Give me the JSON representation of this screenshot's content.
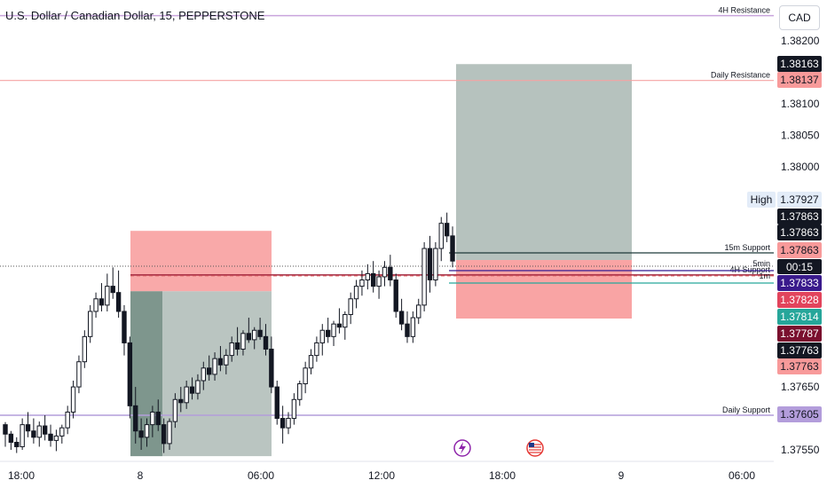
{
  "header": {
    "title": "U.S. Dollar / Canadian Dollar, 15, PEPPERSTONE",
    "currency": "CAD"
  },
  "colors": {
    "background": "#ffffff",
    "up_candle": "#ffffff",
    "down_candle": "#131722",
    "target_zone": "#b2bfba",
    "stop_zone": "#f89a9a",
    "resistance_4h": "#c9a4dd",
    "daily_resistance": "#f4a3a3",
    "daily_support": "#b39ddb",
    "support_4h": "#a3273f",
    "support_15m": "#1f3a3a"
  },
  "chart_data": {
    "type": "candlestick",
    "instrument": "U.S. Dollar / Canadian Dollar",
    "timeframe": "15",
    "ylim": [
      1.3754,
      1.3824
    ],
    "price_ticks": [
      1.382,
      1.381,
      1.3805,
      1.38,
      1.3765,
      1.3755
    ],
    "x_ticks": [
      "18:00",
      "8",
      "06:00",
      "12:00",
      "18:00",
      "9",
      "06:00"
    ],
    "levels": [
      {
        "name": "4H Resistance",
        "price": 1.3824
      },
      {
        "name": "Daily Resistance",
        "price": 1.38137
      },
      {
        "name": "15m Support",
        "price": 1.37863
      },
      {
        "name": "4H Support",
        "price": 1.37828
      },
      {
        "name": "Daily Support",
        "price": 1.37605
      }
    ],
    "small_labels": [
      "5min",
      "1m"
    ],
    "high_label": "High",
    "countdown": "00:15",
    "price_labels": [
      {
        "value": "1.38163",
        "style": "dark"
      },
      {
        "value": "1.38137",
        "style": "pink"
      },
      {
        "value": "1.37927",
        "style": "light"
      },
      {
        "value": "1.37863",
        "style": "dark"
      },
      {
        "value": "1.37863",
        "style": "dark"
      },
      {
        "value": "1.37863",
        "style": "pink"
      },
      {
        "value": "1.37833",
        "style": "purple"
      },
      {
        "value": "1.37828",
        "style": "red"
      },
      {
        "value": "1.37814",
        "style": "teal"
      },
      {
        "value": "1.37787",
        "style": "maroon"
      },
      {
        "value": "1.37763",
        "style": "dark"
      },
      {
        "value": "1.37763",
        "style": "pink"
      },
      {
        "value": "1.37605",
        "style": "lavender"
      }
    ],
    "positions": [
      {
        "side": "short",
        "entry": 1.37833,
        "stop": 1.37898,
        "target": 1.3754
      },
      {
        "side": "long",
        "entry": 1.37863,
        "stop": 1.37787,
        "target": 1.38163
      }
    ],
    "candles": [
      [
        1.3759,
        1.37594,
        1.37555,
        1.37575
      ],
      [
        1.37575,
        1.3758,
        1.3755,
        1.37562
      ],
      [
        1.37562,
        1.3757,
        1.37545,
        1.37555
      ],
      [
        1.37555,
        1.376,
        1.3755,
        1.3759
      ],
      [
        1.3759,
        1.3761,
        1.3757,
        1.3758
      ],
      [
        1.3758,
        1.376,
        1.3756,
        1.3757
      ],
      [
        1.3757,
        1.37595,
        1.37555,
        1.37588
      ],
      [
        1.37588,
        1.37605,
        1.37565,
        1.37575
      ],
      [
        1.37575,
        1.3759,
        1.37555,
        1.37565
      ],
      [
        1.37565,
        1.37582,
        1.37548,
        1.37572
      ],
      [
        1.37572,
        1.3759,
        1.3756,
        1.37585
      ],
      [
        1.37585,
        1.3762,
        1.37575,
        1.3761
      ],
      [
        1.3761,
        1.3766,
        1.376,
        1.3765
      ],
      [
        1.3765,
        1.377,
        1.3764,
        1.3769
      ],
      [
        1.3769,
        1.3774,
        1.3768,
        1.3773
      ],
      [
        1.3773,
        1.3778,
        1.3772,
        1.3777
      ],
      [
        1.3777,
        1.378,
        1.3776,
        1.3779
      ],
      [
        1.3779,
        1.37815,
        1.3777,
        1.3778
      ],
      [
        1.3778,
        1.3783,
        1.3777,
        1.3781
      ],
      [
        1.3781,
        1.3784,
        1.3779,
        1.378
      ],
      [
        1.378,
        1.37835,
        1.3776,
        1.3777
      ],
      [
        1.3777,
        1.3778,
        1.377,
        1.3772
      ],
      [
        1.3772,
        1.3773,
        1.376,
        1.3762
      ],
      [
        1.3762,
        1.3765,
        1.3756,
        1.3758
      ],
      [
        1.3758,
        1.376,
        1.3755,
        1.3757
      ],
      [
        1.3757,
        1.376,
        1.37555,
        1.3759
      ],
      [
        1.3759,
        1.3762,
        1.3757,
        1.3761
      ],
      [
        1.3761,
        1.3763,
        1.3758,
        1.3759
      ],
      [
        1.3759,
        1.376,
        1.37545,
        1.3756
      ],
      [
        1.3756,
        1.376,
        1.3755,
        1.37595
      ],
      [
        1.37595,
        1.3764,
        1.37585,
        1.3763
      ],
      [
        1.3763,
        1.3765,
        1.3761,
        1.37625
      ],
      [
        1.37625,
        1.3766,
        1.37615,
        1.3765
      ],
      [
        1.3765,
        1.37665,
        1.3763,
        1.3764
      ],
      [
        1.3764,
        1.3767,
        1.3763,
        1.3766
      ],
      [
        1.3766,
        1.3769,
        1.37645,
        1.3768
      ],
      [
        1.3768,
        1.377,
        1.3766,
        1.3767
      ],
      [
        1.3767,
        1.37705,
        1.3766,
        1.37695
      ],
      [
        1.37695,
        1.37715,
        1.37675,
        1.37685
      ],
      [
        1.37685,
        1.3771,
        1.3767,
        1.377
      ],
      [
        1.377,
        1.3773,
        1.3769,
        1.3772
      ],
      [
        1.3772,
        1.37745,
        1.377,
        1.3771
      ],
      [
        1.3771,
        1.3774,
        1.377,
        1.37735
      ],
      [
        1.37735,
        1.3776,
        1.3772,
        1.37725
      ],
      [
        1.37725,
        1.37745,
        1.3771,
        1.3774
      ],
      [
        1.3774,
        1.3776,
        1.37725,
        1.3773
      ],
      [
        1.3773,
        1.3775,
        1.377,
        1.3771
      ],
      [
        1.3771,
        1.3773,
        1.3764,
        1.3765
      ],
      [
        1.3765,
        1.3766,
        1.3759,
        1.376
      ],
      [
        1.376,
        1.3762,
        1.3756,
        1.37585
      ],
      [
        1.37585,
        1.3761,
        1.37575,
        1.376
      ],
      [
        1.376,
        1.3764,
        1.3759,
        1.3763
      ],
      [
        1.3763,
        1.3766,
        1.3762,
        1.37655
      ],
      [
        1.37655,
        1.3769,
        1.3764,
        1.3768
      ],
      [
        1.3768,
        1.3771,
        1.3767,
        1.377
      ],
      [
        1.377,
        1.3773,
        1.3769,
        1.3772
      ],
      [
        1.3772,
        1.3775,
        1.377,
        1.3774
      ],
      [
        1.3774,
        1.3776,
        1.3772,
        1.3773
      ],
      [
        1.3773,
        1.37755,
        1.37715,
        1.3775
      ],
      [
        1.3775,
        1.37775,
        1.37735,
        1.37745
      ],
      [
        1.37745,
        1.3777,
        1.37725,
        1.37765
      ],
      [
        1.37765,
        1.378,
        1.3775,
        1.3779
      ],
      [
        1.3779,
        1.3782,
        1.37775,
        1.3781
      ],
      [
        1.3781,
        1.37835,
        1.37795,
        1.3782
      ],
      [
        1.3782,
        1.37845,
        1.37805,
        1.3783
      ],
      [
        1.3783,
        1.3785,
        1.378,
        1.3781
      ],
      [
        1.3781,
        1.37835,
        1.3779,
        1.37825
      ],
      [
        1.37825,
        1.3785,
        1.3781,
        1.3784
      ],
      [
        1.3784,
        1.3786,
        1.3781,
        1.3782
      ],
      [
        1.3782,
        1.3783,
        1.3776,
        1.3777
      ],
      [
        1.3777,
        1.3779,
        1.3774,
        1.3775
      ],
      [
        1.3775,
        1.3777,
        1.3772,
        1.3773
      ],
      [
        1.3773,
        1.3777,
        1.3772,
        1.3776
      ],
      [
        1.3776,
        1.3779,
        1.3775,
        1.3778
      ],
      [
        1.3778,
        1.3788,
        1.3777,
        1.3787
      ],
      [
        1.3787,
        1.3789,
        1.378,
        1.3782
      ],
      [
        1.3782,
        1.3788,
        1.3781,
        1.3787
      ],
      [
        1.3787,
        1.3792,
        1.3785,
        1.3791
      ],
      [
        1.3791,
        1.37927,
        1.3788,
        1.3789
      ],
      [
        1.3789,
        1.37905,
        1.3784,
        1.3785
      ]
    ]
  }
}
